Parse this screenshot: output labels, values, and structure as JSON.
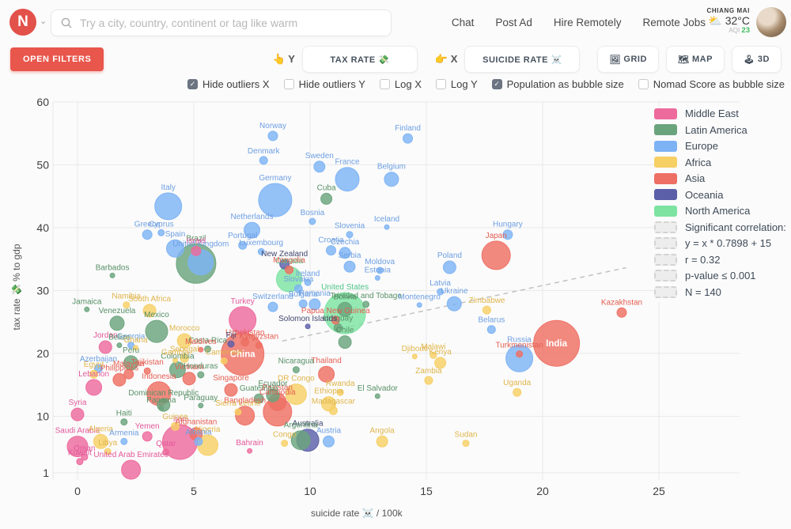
{
  "topbar": {
    "logo_letter": "N",
    "chevron": "⌄",
    "search_placeholder": "Try a city, country, continent or tag like warm",
    "nav": [
      "Chat",
      "Post Ad",
      "Hire Remotely",
      "Remote Jobs"
    ],
    "weather": {
      "city": "CHIANG MAI",
      "icon": "⛅",
      "temp": "32°C",
      "aqi_label": "AQI",
      "aqi_value": "23"
    }
  },
  "toolbar": {
    "open_filters": "OPEN FILTERS",
    "y_pointer": "👆",
    "y_tag": "Y",
    "y_button": "TAX RATE 💸",
    "x_pointer": "👉",
    "x_tag": "X",
    "x_button": "SUICIDE RATE ☠️",
    "view_buttons": [
      {
        "icon": "🖼",
        "label": "GRID"
      },
      {
        "icon": "🗺",
        "label": "MAP"
      },
      {
        "icon": "🕹",
        "label": "3D"
      }
    ]
  },
  "options": [
    {
      "label": "Hide outliers X",
      "checked": true
    },
    {
      "label": "Hide outliers Y",
      "checked": false
    },
    {
      "label": "Log X",
      "checked": false
    },
    {
      "label": "Log Y",
      "checked": false
    },
    {
      "label": "Population as bubble size",
      "checked": true
    },
    {
      "label": "Nomad Score as bubble size",
      "checked": false
    }
  ],
  "legend": {
    "stats": [
      "Significant correlation:",
      "y = x * 0.7898 + 15",
      "r = 0.32",
      "p-value ≤ 0.001",
      "N = 140"
    ]
  },
  "chart_data": {
    "type": "scatter",
    "xlabel": "suicide rate ☠️  / 100k",
    "ylabel": "tax rate 💸  % to gdp",
    "x_ticks": [
      0,
      5,
      10,
      15,
      20,
      25
    ],
    "y_ticks": [
      60,
      50,
      40,
      30,
      20,
      10,
      1
    ],
    "xlim": [
      0,
      28
    ],
    "ylim": [
      1,
      60
    ],
    "grid": true,
    "correlation": {
      "equation": "y = x * 0.7898 + 15",
      "slope": 0.7898,
      "intercept": 15,
      "r": 0.32,
      "p_value": "≤ 0.001",
      "N": 140,
      "draw_from": 8.8,
      "draw_to": 23.6
    },
    "series": [
      {
        "name": "Middle East",
        "color": "#ed6a9d",
        "label_color": "#e2589a",
        "points": [
          {
            "label": "Israel",
            "x": 5.1,
            "y": 36.3,
            "r": 6
          },
          {
            "label": "Turkey",
            "x": 7.1,
            "y": 25.3,
            "r": 17
          },
          {
            "label": "Jordan",
            "x": 1.2,
            "y": 21.0,
            "r": 8
          },
          {
            "label": "Lebanon",
            "x": 0.7,
            "y": 14.6,
            "r": 10
          },
          {
            "label": "Syria",
            "x": 0.0,
            "y": 10.3,
            "r": 8
          },
          {
            "label": "Saudi Arabia",
            "x": 0.0,
            "y": 5.2,
            "r": 13
          },
          {
            "label": "Yemen",
            "x": 3.0,
            "y": 6.8,
            "r": 6
          },
          {
            "label": "Bahrain",
            "x": 7.4,
            "y": 4.5,
            "r": 3
          },
          {
            "label": "Oman",
            "x": 0.3,
            "y": 3.5,
            "r": 4
          },
          {
            "label": "Kuwait",
            "x": 0.1,
            "y": 2.8,
            "r": 4
          },
          {
            "label": "Qatar",
            "x": 3.8,
            "y": 4.3,
            "r": 4
          },
          {
            "label": "United Arab Emirates",
            "x": 2.3,
            "y": 1.5,
            "r": 12
          },
          {
            "label": "Iran",
            "x": 4.4,
            "y": 5.9,
            "r": 22
          }
        ]
      },
      {
        "name": "Latin America",
        "color": "#6aa47d",
        "label_color": "#579066",
        "points": [
          {
            "label": "Cuba",
            "x": 10.7,
            "y": 44.6,
            "r": 7
          },
          {
            "label": "Brazil",
            "x": 5.1,
            "y": 34.3,
            "r": 25
          },
          {
            "label": "Barbados",
            "x": 1.5,
            "y": 32.4,
            "r": 3
          },
          {
            "label": "Jamaica",
            "x": 0.4,
            "y": 27.0,
            "r": 3
          },
          {
            "label": "Venezuela",
            "x": 1.7,
            "y": 24.8,
            "r": 9
          },
          {
            "label": "Mexico",
            "x": 3.4,
            "y": 23.5,
            "r": 14
          },
          {
            "label": "Belize",
            "x": 1.8,
            "y": 21.3,
            "r": 3
          },
          {
            "label": "Peru",
            "x": 2.3,
            "y": 18.5,
            "r": 9
          },
          {
            "label": "Costa Rica",
            "x": 5.6,
            "y": 20.7,
            "r": 4
          },
          {
            "label": "Colombia",
            "x": 4.3,
            "y": 17.4,
            "r": 10
          },
          {
            "label": "Honduras",
            "x": 5.3,
            "y": 16.6,
            "r": 4
          },
          {
            "label": "Nicaragua",
            "x": 9.4,
            "y": 17.4,
            "r": 4
          },
          {
            "label": "Bolivia",
            "x": 11.5,
            "y": 27.0,
            "r": 9
          },
          {
            "label": "Trinidad and Tobago",
            "x": 12.4,
            "y": 27.8,
            "r": 4
          },
          {
            "label": "Uruguay",
            "x": 11.2,
            "y": 24.1,
            "r": 5
          },
          {
            "label": "Chile",
            "x": 11.5,
            "y": 21.8,
            "r": 8
          },
          {
            "label": "Ecuador",
            "x": 8.4,
            "y": 13.3,
            "r": 8
          },
          {
            "label": "Guatemala",
            "x": 7.8,
            "y": 12.8,
            "r": 6
          },
          {
            "label": "Paraguay",
            "x": 5.3,
            "y": 11.7,
            "r": 3
          },
          {
            "label": "Panama",
            "x": 3.6,
            "y": 11.3,
            "r": 3
          },
          {
            "label": "Haiti",
            "x": 2.0,
            "y": 9.1,
            "r": 4
          },
          {
            "label": "Dominican Republic",
            "x": 3.7,
            "y": 11.8,
            "r": 8
          },
          {
            "label": "El Salvador",
            "x": 12.9,
            "y": 13.2,
            "r": 3
          },
          {
            "label": "Argentina",
            "x": 9.6,
            "y": 6.2,
            "r": 12
          }
        ]
      },
      {
        "name": "Europe",
        "color": "#7db3f4",
        "label_color": "#6d9fe2",
        "points": [
          {
            "label": "Norway",
            "x": 8.4,
            "y": 54.6,
            "r": 6
          },
          {
            "label": "Finland",
            "x": 14.2,
            "y": 54.2,
            "r": 6
          },
          {
            "label": "Denmark",
            "x": 8.0,
            "y": 50.7,
            "r": 5
          },
          {
            "label": "Sweden",
            "x": 10.4,
            "y": 49.7,
            "r": 7
          },
          {
            "label": "France",
            "x": 11.6,
            "y": 47.7,
            "r": 15
          },
          {
            "label": "Belgium",
            "x": 13.5,
            "y": 47.7,
            "r": 9
          },
          {
            "label": "Germany",
            "x": 8.5,
            "y": 44.4,
            "r": 21
          },
          {
            "label": "Italy",
            "x": 3.9,
            "y": 43.4,
            "r": 17
          },
          {
            "label": "Bosnia",
            "x": 10.1,
            "y": 41.0,
            "r": 4
          },
          {
            "label": "Iceland",
            "x": 13.3,
            "y": 40.1,
            "r": 3
          },
          {
            "label": "Netherlands",
            "x": 7.5,
            "y": 39.6,
            "r": 10
          },
          {
            "label": "Slovenia",
            "x": 11.7,
            "y": 38.9,
            "r": 4
          },
          {
            "label": "Greece",
            "x": 3.0,
            "y": 38.9,
            "r": 6
          },
          {
            "label": "Cyprus",
            "x": 3.6,
            "y": 39.2,
            "r": 4
          },
          {
            "label": "Hungary",
            "x": 18.5,
            "y": 38.9,
            "r": 6
          },
          {
            "label": "Portugal",
            "x": 7.1,
            "y": 37.2,
            "r": 5
          },
          {
            "label": "Luxembourg",
            "x": 7.9,
            "y": 36.2,
            "r": 4
          },
          {
            "label": "Spain",
            "x": 4.2,
            "y": 36.7,
            "r": 11
          },
          {
            "label": "United Kingdom",
            "x": 5.3,
            "y": 34.5,
            "r": 16
          },
          {
            "label": "Croatia",
            "x": 10.9,
            "y": 36.4,
            "r": 6
          },
          {
            "label": "Czechia",
            "x": 11.5,
            "y": 36.0,
            "r": 7
          },
          {
            "label": "Serbia",
            "x": 11.7,
            "y": 33.8,
            "r": 7
          },
          {
            "label": "Moldova",
            "x": 13.0,
            "y": 33.2,
            "r": 4
          },
          {
            "label": "Estonia",
            "x": 12.9,
            "y": 32.0,
            "r": 3
          },
          {
            "label": "Poland",
            "x": 16.0,
            "y": 33.7,
            "r": 8
          },
          {
            "label": "Ireland",
            "x": 9.9,
            "y": 31.3,
            "r": 4
          },
          {
            "label": "Slovakia",
            "x": 9.5,
            "y": 30.3,
            "r": 5
          },
          {
            "label": "Latvia",
            "x": 15.6,
            "y": 29.8,
            "r": 4
          },
          {
            "label": "Switzerland",
            "x": 8.4,
            "y": 27.4,
            "r": 6
          },
          {
            "label": "Bulgaria",
            "x": 9.7,
            "y": 27.9,
            "r": 5
          },
          {
            "label": "Romania",
            "x": 10.2,
            "y": 27.8,
            "r": 7
          },
          {
            "label": "Ukraine",
            "x": 16.2,
            "y": 27.9,
            "r": 9
          },
          {
            "label": "Montenegro",
            "x": 14.7,
            "y": 27.7,
            "r": 3
          },
          {
            "label": "Belarus",
            "x": 17.8,
            "y": 23.8,
            "r": 5
          },
          {
            "label": "Russia",
            "x": 19.0,
            "y": 19.2,
            "r": 17
          },
          {
            "label": "Georgia",
            "x": 2.3,
            "y": 21.3,
            "r": 4
          },
          {
            "label": "Azerbaijan",
            "x": 0.9,
            "y": 17.6,
            "r": 5
          },
          {
            "label": "Armenia",
            "x": 2.0,
            "y": 6.0,
            "r": 4
          },
          {
            "label": "Albania",
            "x": 5.2,
            "y": 6.0,
            "r": 5
          },
          {
            "label": "Austria",
            "x": 10.8,
            "y": 6.0,
            "r": 7
          }
        ]
      },
      {
        "name": "Africa",
        "color": "#f6cf65",
        "label_color": "#e0b54a",
        "points": [
          {
            "label": "Namibia",
            "x": 2.1,
            "y": 27.7,
            "r": 4
          },
          {
            "label": "South Africa",
            "x": 3.1,
            "y": 26.8,
            "r": 8
          },
          {
            "label": "Morocco",
            "x": 4.6,
            "y": 22.0,
            "r": 9
          },
          {
            "label": "Ghana",
            "x": 2.5,
            "y": 20.9,
            "r": 3
          },
          {
            "label": "Senegal",
            "x": 4.6,
            "y": 19.2,
            "r": 5
          },
          {
            "label": "Gambia",
            "x": 4.2,
            "y": 18.9,
            "r": 3
          },
          {
            "label": "Cameroon",
            "x": 6.3,
            "y": 18.8,
            "r": 4
          },
          {
            "label": "Zimbabwe",
            "x": 17.6,
            "y": 26.9,
            "r": 5
          },
          {
            "label": "Malawi",
            "x": 15.3,
            "y": 19.7,
            "r": 4
          },
          {
            "label": "Kenya",
            "x": 15.6,
            "y": 18.5,
            "r": 7
          },
          {
            "label": "Djibouti",
            "x": 14.5,
            "y": 19.5,
            "r": 3
          },
          {
            "label": "Zambia",
            "x": 15.1,
            "y": 15.7,
            "r": 5
          },
          {
            "label": "Uganda",
            "x": 18.9,
            "y": 13.8,
            "r": 5
          },
          {
            "label": "Rwanda",
            "x": 11.3,
            "y": 13.8,
            "r": 4
          },
          {
            "label": "DR Congo",
            "x": 9.4,
            "y": 13.5,
            "r": 13
          },
          {
            "label": "Ethiopia",
            "x": 10.8,
            "y": 12.0,
            "r": 9
          },
          {
            "label": "Madagascar",
            "x": 11.0,
            "y": 10.9,
            "r": 5
          },
          {
            "label": "Sierra Leone",
            "x": 6.9,
            "y": 10.7,
            "r": 4
          },
          {
            "label": "Guinea",
            "x": 4.2,
            "y": 8.4,
            "r": 5
          },
          {
            "label": "Nigeria",
            "x": 5.6,
            "y": 5.4,
            "r": 13
          },
          {
            "label": "Algeria",
            "x": 1.0,
            "y": 6.0,
            "r": 9
          },
          {
            "label": "Libya",
            "x": 1.3,
            "y": 4.4,
            "r": 4
          },
          {
            "label": "Egypt",
            "x": 0.7,
            "y": 16.7,
            "r": 5
          },
          {
            "label": "Sudan",
            "x": 16.7,
            "y": 5.7,
            "r": 4
          },
          {
            "label": "Angola",
            "x": 13.1,
            "y": 6.0,
            "r": 7
          },
          {
            "label": "Congo",
            "x": 8.9,
            "y": 5.7,
            "r": 4
          }
        ]
      },
      {
        "name": "Asia",
        "color": "#ee6f63",
        "label_color": "#e55d51",
        "points": [
          {
            "label": "Japan",
            "x": 18.0,
            "y": 35.6,
            "r": 18
          },
          {
            "label": "Mongolia",
            "x": 9.1,
            "y": 33.3,
            "r": 5
          },
          {
            "label": "Kazakhstan",
            "x": 23.4,
            "y": 26.5,
            "r": 6
          },
          {
            "label": "India",
            "x": 20.6,
            "y": 21.6,
            "r": 29,
            "inside": true
          },
          {
            "label": "China",
            "x": 7.1,
            "y": 19.9,
            "r": 27,
            "inside": true
          },
          {
            "label": "Turkmenistan",
            "x": 19.0,
            "y": 19.9,
            "r": 4
          },
          {
            "label": "Uzbekistan",
            "x": 7.2,
            "y": 21.8,
            "r": 5
          },
          {
            "label": "Kyrgyzstan",
            "x": 7.8,
            "y": 21.3,
            "r": 4
          },
          {
            "label": "Thailand",
            "x": 10.7,
            "y": 16.7,
            "r": 10
          },
          {
            "label": "Vietnam",
            "x": 4.8,
            "y": 16.0,
            "r": 8
          },
          {
            "label": "Malaysia",
            "x": 2.2,
            "y": 16.7,
            "r": 6
          },
          {
            "label": "Philippines",
            "x": 1.8,
            "y": 15.8,
            "r": 8
          },
          {
            "label": "Tajikistan",
            "x": 3.0,
            "y": 17.2,
            "r": 4
          },
          {
            "label": "Indonesia",
            "x": 3.5,
            "y": 13.6,
            "r": 15
          },
          {
            "label": "Singapore",
            "x": 6.6,
            "y": 14.2,
            "r": 8
          },
          {
            "label": "Pakistan",
            "x": 8.6,
            "y": 12.3,
            "r": 11
          },
          {
            "label": "Bangladesh",
            "x": 7.2,
            "y": 10.1,
            "r": 12
          },
          {
            "label": "Cambodia",
            "x": 8.6,
            "y": 10.7,
            "r": 18
          },
          {
            "label": "Afghanistan",
            "x": 5.1,
            "y": 7.2,
            "r": 8
          },
          {
            "label": "Papua New Guinea",
            "x": 11.1,
            "y": 25.3,
            "r": 5
          },
          {
            "label": "Maldives",
            "x": 5.3,
            "y": 20.6,
            "r": 3
          }
        ]
      },
      {
        "name": "Oceania",
        "color": "#5a5fa8",
        "label_color": "#40466e",
        "points": [
          {
            "label": "New Zealand",
            "x": 8.9,
            "y": 34.2,
            "r": 6
          },
          {
            "label": "Australia",
            "x": 9.9,
            "y": 6.2,
            "r": 14
          },
          {
            "label": "Solomon Islands",
            "x": 9.9,
            "y": 24.3,
            "r": 3
          },
          {
            "label": "Fiji",
            "x": 6.6,
            "y": 21.5,
            "r": 4
          }
        ]
      },
      {
        "name": "North America",
        "color": "#7ce3a1",
        "label_color": "#4ec487",
        "points": [
          {
            "label": "Canada",
            "x": 9.1,
            "y": 31.8,
            "r": 16
          },
          {
            "label": "United States",
            "x": 11.5,
            "y": 26.4,
            "r": 26
          }
        ]
      }
    ]
  }
}
